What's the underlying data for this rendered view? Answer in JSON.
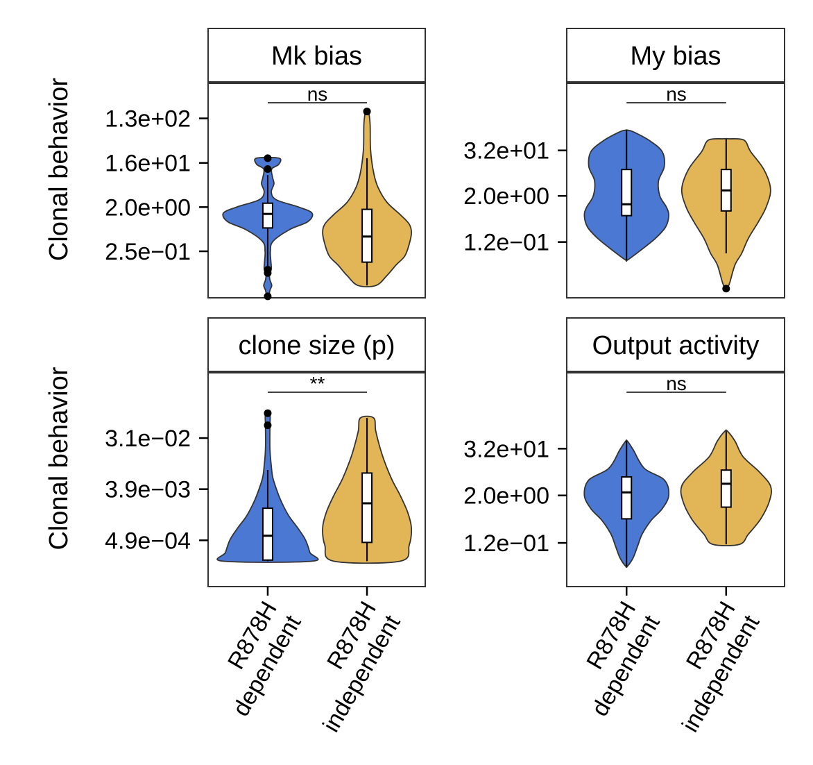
{
  "colors": {
    "R878H dependent": "#4A78D2",
    "R878H independent": "#E2B657",
    "frame": "#333333",
    "violin_outline": "#333333"
  },
  "chart_data": [
    {
      "type": "violin",
      "scale": "log",
      "title": "Mk bias",
      "ylabel": "Clonal behavior",
      "yticks": [
        130,
        16,
        2.0,
        0.25
      ],
      "ytick_labels": [
        "1.3e+02",
        "1.6e+01",
        "2.0e+00",
        "2.5e−01"
      ],
      "ylim": [
        0.028,
        700
      ],
      "categories": [
        "R878H dependent",
        "R878H independent"
      ],
      "significance": "ns",
      "groups": [
        {
          "name": "R878H dependent",
          "profile": [
            [
              0.03,
              0.02
            ],
            [
              0.04,
              0.05
            ],
            [
              0.05,
              0.09
            ],
            [
              0.065,
              0.05
            ],
            [
              0.08,
              0.04
            ],
            [
              0.11,
              0.08
            ],
            [
              0.16,
              0.07
            ],
            [
              0.25,
              0.06
            ],
            [
              0.4,
              0.12
            ],
            [
              0.7,
              0.5
            ],
            [
              1.0,
              0.9
            ],
            [
              1.5,
              1.0
            ],
            [
              2.0,
              0.7
            ],
            [
              2.8,
              0.2
            ],
            [
              4,
              0.08
            ],
            [
              6,
              0.14
            ],
            [
              8,
              0.11
            ],
            [
              12,
              0.09
            ],
            [
              15,
              0.25
            ],
            [
              20,
              0.25
            ]
          ],
          "q1": 0.75,
          "median": 1.45,
          "q3": 2.4,
          "whisker_low": 0.1,
          "whisker_high": 9,
          "outliers": [
            0.03,
            0.09,
            0.105,
            12,
            20
          ]
        },
        {
          "name": "R878H independent",
          "profile": [
            [
              0.05,
              0.2
            ],
            [
              0.08,
              0.45
            ],
            [
              0.13,
              0.65
            ],
            [
              0.2,
              0.85
            ],
            [
              0.35,
              0.95
            ],
            [
              0.6,
              1.0
            ],
            [
              0.9,
              0.95
            ],
            [
              1.4,
              0.75
            ],
            [
              2.5,
              0.45
            ],
            [
              5,
              0.25
            ],
            [
              10,
              0.15
            ],
            [
              30,
              0.08
            ],
            [
              100,
              0.07
            ],
            [
              180,
              0.03
            ]
          ],
          "q1": 0.15,
          "median": 0.5,
          "q3": 1.8,
          "whisker_low": 0.05,
          "whisker_high": 20,
          "outliers": [
            180
          ]
        }
      ]
    },
    {
      "type": "violin",
      "scale": "log",
      "title": "My bias",
      "yticks": [
        32,
        2.0,
        0.12
      ],
      "ytick_labels": [
        "3.2e+01",
        "2.0e+00",
        "1.2e−01"
      ],
      "ylim": [
        0.004,
        2000
      ],
      "categories": [
        "R878H dependent",
        "R878H independent"
      ],
      "significance": "ns",
      "groups": [
        {
          "name": "R878H dependent",
          "profile": [
            [
              0.04,
              0.02
            ],
            [
              0.07,
              0.3
            ],
            [
              0.15,
              0.65
            ],
            [
              0.3,
              0.88
            ],
            [
              0.6,
              0.95
            ],
            [
              1.0,
              0.9
            ],
            [
              2.0,
              0.75
            ],
            [
              5,
              0.72
            ],
            [
              12,
              0.85
            ],
            [
              30,
              0.8
            ],
            [
              60,
              0.5
            ],
            [
              100,
              0.15
            ],
            [
              110,
              0.02
            ]
          ],
          "q1": 0.6,
          "median": 1.2,
          "q3": 10,
          "whisker_low": 0.04,
          "whisker_high": 110
        },
        {
          "name": "R878H independent",
          "profile": [
            [
              0.007,
              0.02
            ],
            [
              0.01,
              0.08
            ],
            [
              0.03,
              0.2
            ],
            [
              0.06,
              0.35
            ],
            [
              0.15,
              0.5
            ],
            [
              0.4,
              0.72
            ],
            [
              1.0,
              0.9
            ],
            [
              3,
              1.0
            ],
            [
              10,
              0.85
            ],
            [
              30,
              0.55
            ],
            [
              60,
              0.4
            ],
            [
              65,
              0.05
            ]
          ],
          "q1": 0.8,
          "median": 2.8,
          "q3": 10,
          "whisker_low": 0.06,
          "whisker_high": 65,
          "outliers": [
            0.007
          ]
        }
      ]
    },
    {
      "type": "violin",
      "scale": "log",
      "title": "clone size (p)",
      "ylabel": "Clonal behavior",
      "yticks": [
        0.031,
        0.0039,
        0.00049
      ],
      "ytick_labels": [
        "3.1e−02",
        "3.9e−03",
        "4.9e−04"
      ],
      "ylim": [
        7.5e-05,
        0.45
      ],
      "categories": [
        "R878H dependent",
        "R878H independent"
      ],
      "significance": "**",
      "groups": [
        {
          "name": "R878H dependent",
          "profile": [
            [
              0.00021,
              1.0
            ],
            [
              0.0003,
              0.95
            ],
            [
              0.0005,
              0.85
            ],
            [
              0.0008,
              0.68
            ],
            [
              0.0013,
              0.48
            ],
            [
              0.002,
              0.35
            ],
            [
              0.003,
              0.25
            ],
            [
              0.006,
              0.12
            ],
            [
              0.01,
              0.08
            ],
            [
              0.02,
              0.05
            ],
            [
              0.05,
              0.05
            ],
            [
              0.08,
              0.05
            ]
          ],
          "q1": 0.00022,
          "median": 0.00059,
          "q3": 0.0018,
          "whisker_low": 0.00021,
          "whisker_high": 0.0085,
          "outliers": [
            0.052,
            0.085
          ]
        },
        {
          "name": "R878H independent",
          "profile": [
            [
              0.00021,
              0.75
            ],
            [
              0.0004,
              0.95
            ],
            [
              0.0008,
              1.0
            ],
            [
              0.0015,
              0.92
            ],
            [
              0.003,
              0.75
            ],
            [
              0.006,
              0.55
            ],
            [
              0.015,
              0.35
            ],
            [
              0.04,
              0.2
            ],
            [
              0.07,
              0.15
            ]
          ],
          "q1": 0.00045,
          "median": 0.0022,
          "q3": 0.0075,
          "whisker_low": 0.00021,
          "whisker_high": 0.07
        }
      ]
    },
    {
      "type": "violin",
      "scale": "log",
      "title": "Output activity",
      "yticks": [
        32,
        2.0,
        0.12
      ],
      "ytick_labels": [
        "3.2e+01",
        "2.0e+00",
        "1.2e−01"
      ],
      "ylim": [
        0.009,
        3000
      ],
      "categories": [
        "R878H dependent",
        "R878H independent"
      ],
      "significance": "ns",
      "groups": [
        {
          "name": "R878H dependent",
          "profile": [
            [
              0.03,
              0.02
            ],
            [
              0.05,
              0.15
            ],
            [
              0.1,
              0.25
            ],
            [
              0.2,
              0.35
            ],
            [
              0.45,
              0.55
            ],
            [
              0.9,
              0.8
            ],
            [
              2.0,
              0.95
            ],
            [
              5,
              0.85
            ],
            [
              10,
              0.4
            ],
            [
              30,
              0.15
            ],
            [
              50,
              0.02
            ]
          ],
          "q1": 0.5,
          "median": 2.4,
          "q3": 6,
          "whisker_low": 0.03,
          "whisker_high": 50
        },
        {
          "name": "R878H independent",
          "profile": [
            [
              0.11,
              0.3
            ],
            [
              0.2,
              0.5
            ],
            [
              0.5,
              0.78
            ],
            [
              1.5,
              0.98
            ],
            [
              3.5,
              1.0
            ],
            [
              8,
              0.75
            ],
            [
              20,
              0.38
            ],
            [
              50,
              0.2
            ],
            [
              90,
              0.03
            ]
          ],
          "q1": 1.0,
          "median": 4.0,
          "q3": 9,
          "whisker_low": 0.11,
          "whisker_high": 90
        }
      ]
    }
  ]
}
